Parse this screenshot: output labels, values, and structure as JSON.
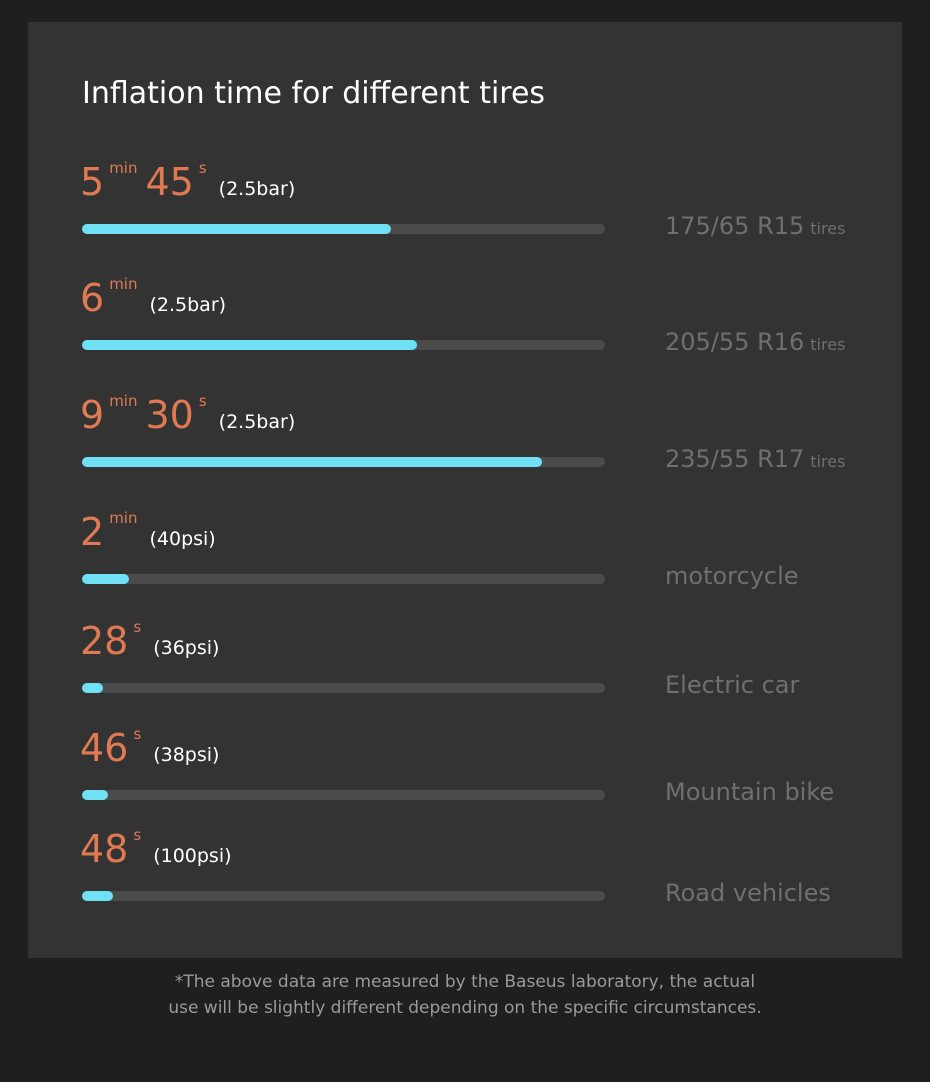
{
  "header": {
    "title": "Inflation time for different tires"
  },
  "xlim": [
    0,
    100
  ],
  "rows": [
    {
      "time": [
        {
          "value": "5",
          "unit": "min"
        },
        {
          "value": "45",
          "unit": "s"
        }
      ],
      "pressure": "(2.5bar)",
      "label": "175/65 R15",
      "label_suffix": "tires",
      "progress": 59
    },
    {
      "time": [
        {
          "value": "6",
          "unit": "min"
        }
      ],
      "pressure": "(2.5bar)",
      "label": "205/55 R16",
      "label_suffix": "tires",
      "progress": 64
    },
    {
      "time": [
        {
          "value": "9",
          "unit": "min"
        },
        {
          "value": "30",
          "unit": "s"
        }
      ],
      "pressure": "(2.5bar)",
      "label": "235/55 R17",
      "label_suffix": "tires",
      "progress": 88
    },
    {
      "time": [
        {
          "value": "2",
          "unit": "min"
        }
      ],
      "pressure": "(40psi)",
      "label": "motorcycle",
      "progress": 9
    },
    {
      "time": [
        {
          "value": "28",
          "unit": "s"
        }
      ],
      "pressure": "(36psi)",
      "label": "Electric car",
      "progress": 4
    },
    {
      "time": [
        {
          "value": "46",
          "unit": "s"
        }
      ],
      "pressure": "(38psi)",
      "label": "Mountain bike",
      "progress": 5
    },
    {
      "time": [
        {
          "value": "48",
          "unit": "s"
        }
      ],
      "pressure": "(100psi)",
      "label": "Road vehicles",
      "progress": 6
    }
  ],
  "footnote": [
    "*The above data are measured by the Baseus laboratory, the actual",
    "use will be slightly different depending on the specific circumstances."
  ]
}
